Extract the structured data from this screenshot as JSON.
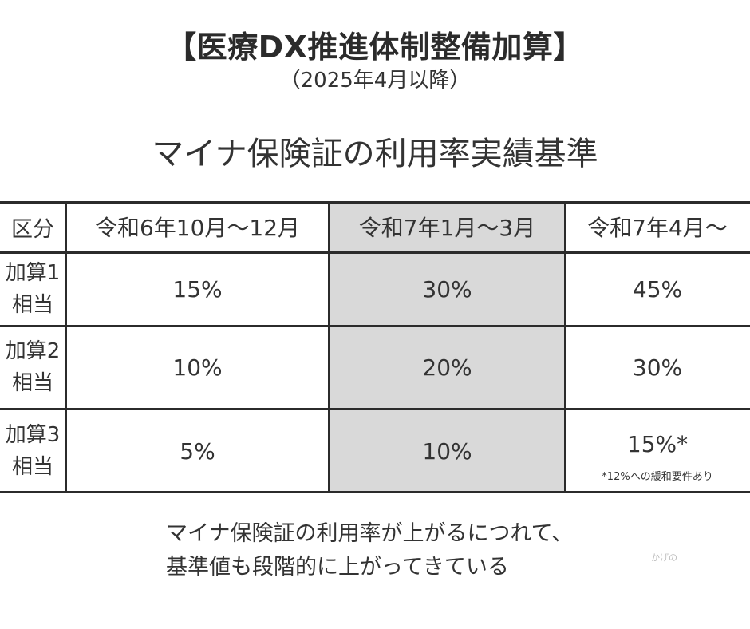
{
  "title": "【医療DX推進体制整備加算】",
  "subtitle": "（2025年4月以降）",
  "heading": "マイナ保険証の利用率実績基準",
  "table": {
    "headers": [
      "区分",
      "令和6年10月～12月",
      "令和7年1月～3月",
      "令和7年4月～"
    ],
    "rows": [
      {
        "label_line1": "加算1",
        "label_line2": "相当",
        "values": [
          "15%",
          "30%",
          "45%"
        ]
      },
      {
        "label_line1": "加算2",
        "label_line2": "相当",
        "values": [
          "10%",
          "20%",
          "30%"
        ]
      },
      {
        "label_line1": "加算3",
        "label_line2": "相当",
        "values": [
          "5%",
          "10%",
          "15%*"
        ]
      }
    ],
    "note": "*12%への緩和要件あり",
    "highlight_color": "#d9d9d9"
  },
  "footer": {
    "line1": "マイナ保険証の利用率が上がるにつれて、",
    "line2": "基準値も段階的に上がってきている"
  },
  "watermark": "かげの"
}
